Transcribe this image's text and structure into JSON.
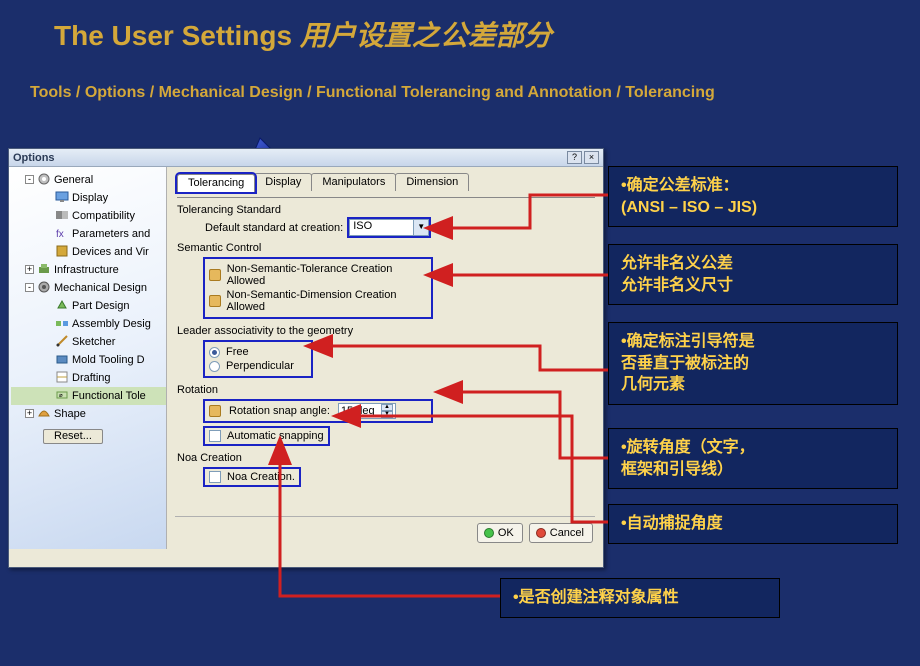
{
  "slide": {
    "title_en": "The User Settings ",
    "title_cn": "用户设置之公差部分",
    "breadcrumb": "Tools / Options / Mechanical Design / Functional Tolerancing and Annotation / Tolerancing"
  },
  "window": {
    "title": "Options",
    "help": "?",
    "close": "×",
    "tree": {
      "reset": "Reset...",
      "items": [
        {
          "level": 0,
          "label": "General",
          "exp": "-",
          "icon": "gear"
        },
        {
          "level": 1,
          "label": "Display",
          "icon": "display"
        },
        {
          "level": 1,
          "label": "Compatibility",
          "icon": "compat"
        },
        {
          "level": 1,
          "label": "Parameters and",
          "icon": "param"
        },
        {
          "level": 1,
          "label": "Devices and Vir",
          "icon": "device"
        },
        {
          "level": 0,
          "label": "Infrastructure",
          "exp": "+",
          "icon": "infra"
        },
        {
          "level": 0,
          "label": "Mechanical Design",
          "exp": "-",
          "icon": "mech"
        },
        {
          "level": 1,
          "label": "Part Design",
          "icon": "part"
        },
        {
          "level": 1,
          "label": "Assembly Desig",
          "icon": "asm"
        },
        {
          "level": 1,
          "label": "Sketcher",
          "icon": "sketch"
        },
        {
          "level": 1,
          "label": "Mold Tooling D",
          "icon": "mold"
        },
        {
          "level": 1,
          "label": "Drafting",
          "icon": "draft"
        },
        {
          "level": 1,
          "label": "Functional Tole",
          "icon": "ft",
          "selected": true
        },
        {
          "level": 0,
          "label": "Shape",
          "exp": "+",
          "icon": "shape"
        }
      ]
    },
    "tabs": [
      "Tolerancing",
      "Display",
      "Manipulators",
      "Dimension"
    ],
    "active_tab": 0,
    "sections": {
      "std": {
        "title": "Tolerancing Standard",
        "label": "Default standard at creation:",
        "value": "ISO"
      },
      "sem": {
        "title": "Semantic Control",
        "opt1": "Non-Semantic-Tolerance Creation Allowed",
        "opt2": "Non-Semantic-Dimension Creation Allowed"
      },
      "leader": {
        "title": "Leader associativity to the geometry",
        "opt1": "Free",
        "opt2": "Perpendicular"
      },
      "rot": {
        "title": "Rotation",
        "label": "Rotation snap angle:",
        "value": "15 deg",
        "auto": "Automatic snapping"
      },
      "noa": {
        "title": "Noa Creation",
        "opt": "Noa Creation."
      }
    },
    "ok": "OK",
    "cancel": "Cancel"
  },
  "callouts": {
    "c1": {
      "l1": "•确定公差标准：",
      "l2": "(ANSI – ISO – JIS)"
    },
    "c2": {
      "l1": "允许非名义公差",
      "l2": "允许非名义尺寸"
    },
    "c3": {
      "l1": "•确定标注引导符是",
      "l2": "否垂直于被标注的",
      "l3": "几何元素"
    },
    "c4": {
      "l1": "•旋转角度（文字，",
      "l2": "框架和引导线）"
    },
    "c5": {
      "l1": "•自动捕捉角度"
    },
    "c6": {
      "l1": "•是否创建注释对象属性"
    }
  },
  "colors": {
    "bg": "#1b2e6b",
    "accent": "#d4a83a",
    "highlight": "#1a23c4",
    "arrow": "#d02020",
    "callout_bg": "#12265f"
  }
}
